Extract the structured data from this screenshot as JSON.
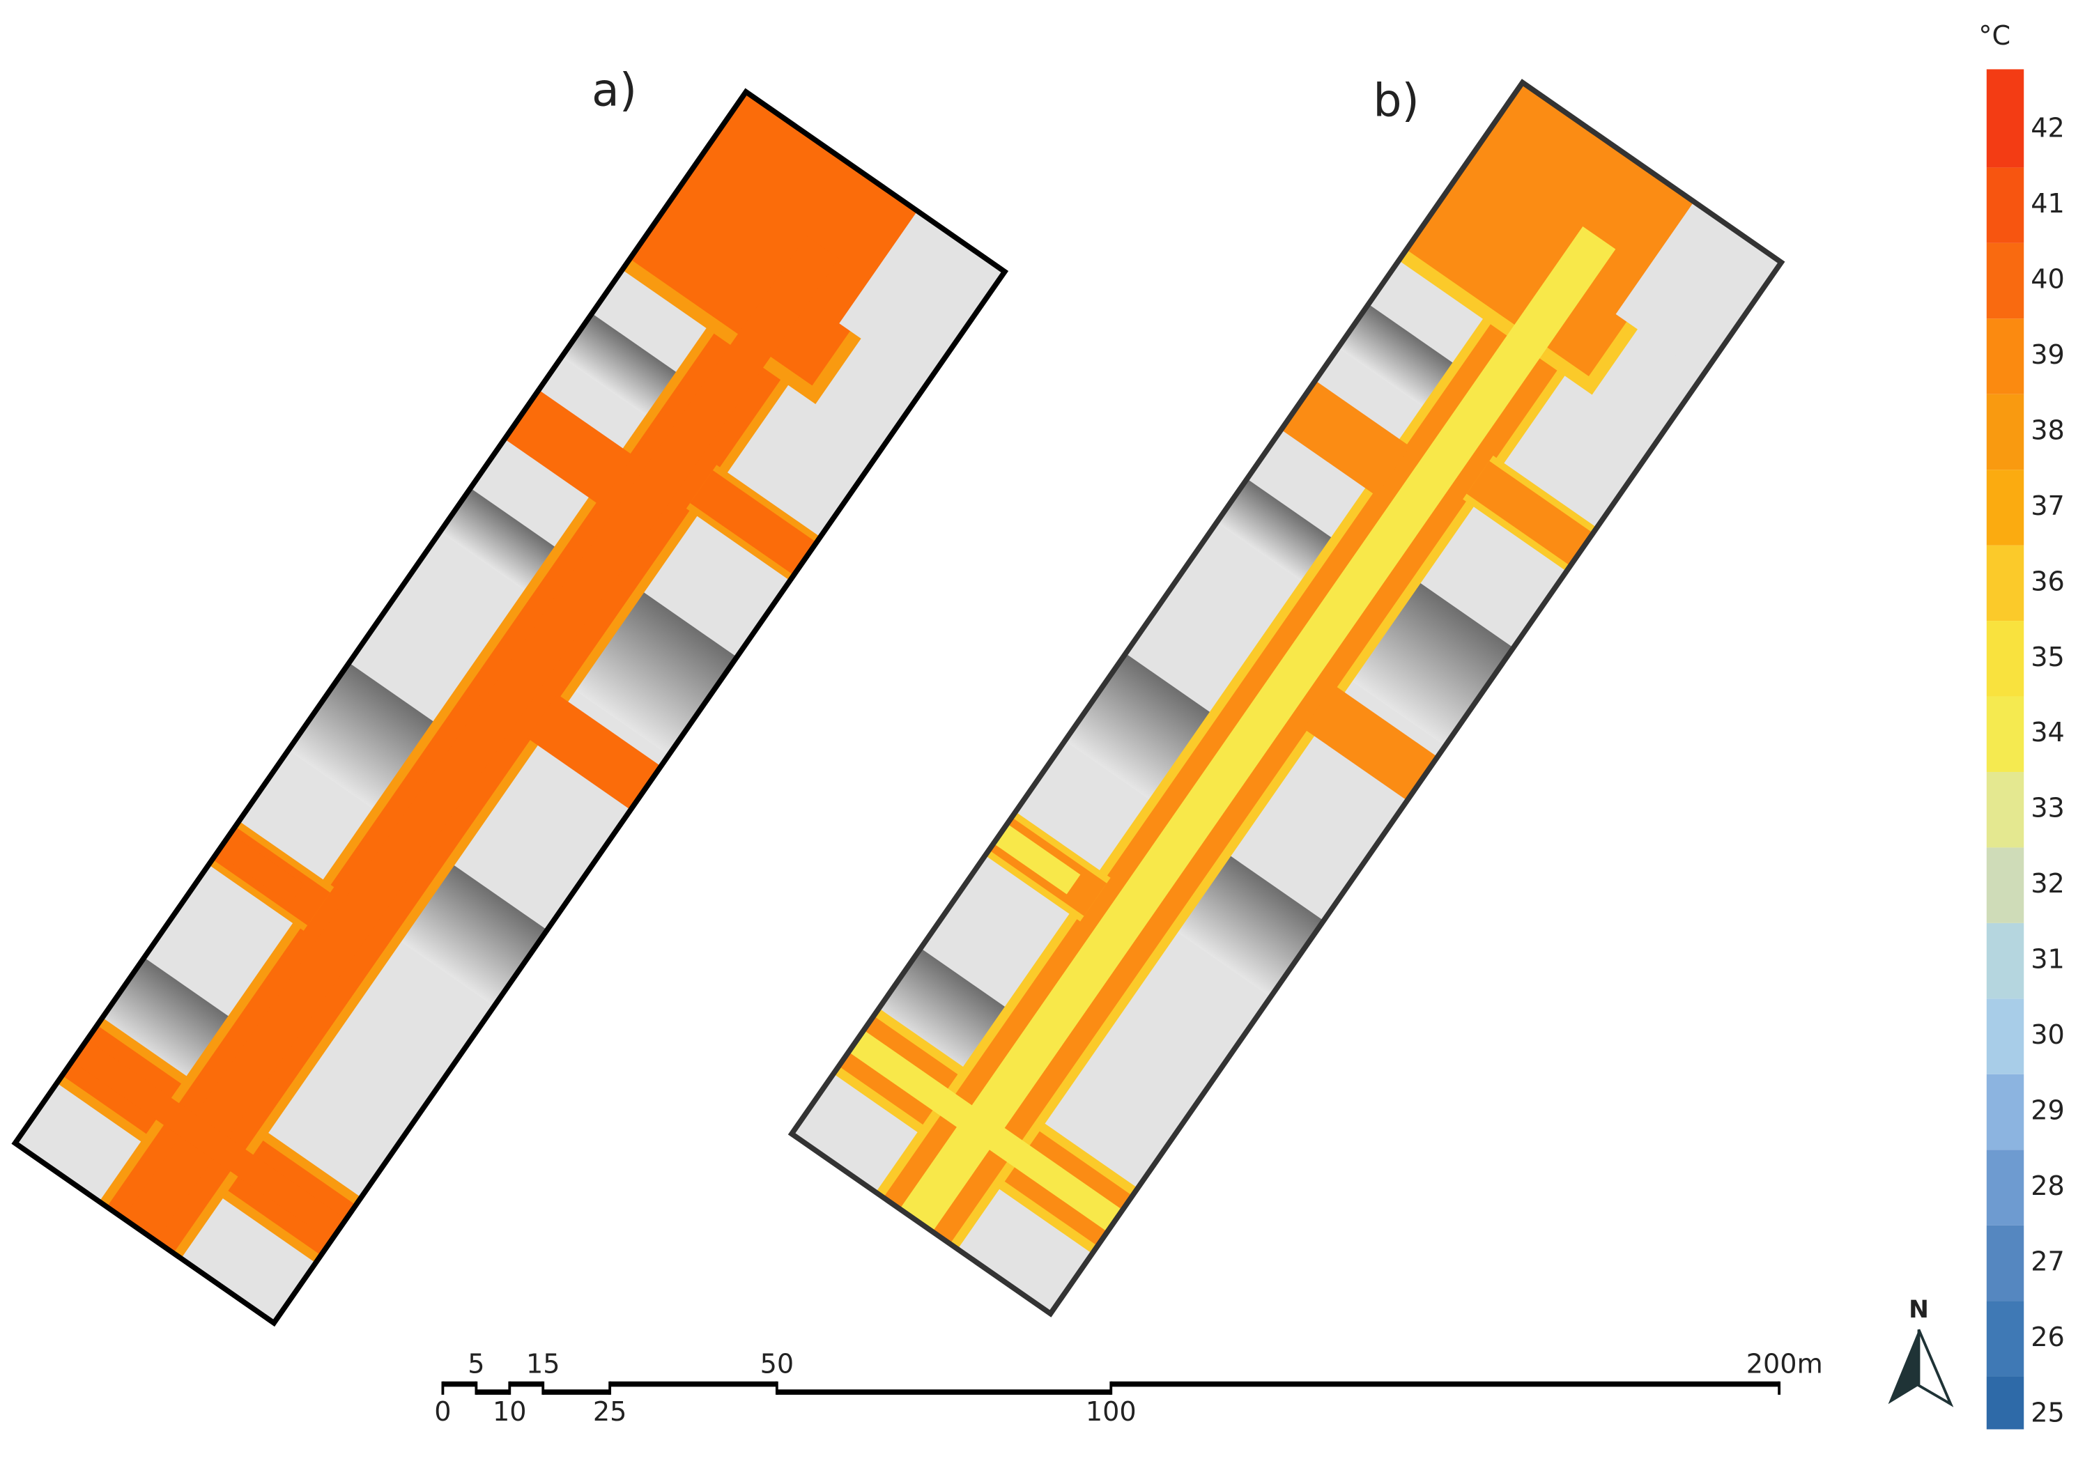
{
  "panels": [
    {
      "label": "a)"
    },
    {
      "label": "b)"
    }
  ],
  "colorbar": {
    "unit": "°C",
    "lim": [
      24.8,
      42.8
    ],
    "ticks": [
      25,
      26,
      27,
      28,
      29,
      30,
      31,
      32,
      33,
      34,
      35,
      36,
      37,
      38,
      39,
      40,
      41,
      42
    ],
    "colors": [
      "#2e6aa8",
      "#3f79b5",
      "#5587c0",
      "#6e9bd0",
      "#8cb4e0",
      "#a8cde8",
      "#b5d6df",
      "#cfdcb8",
      "#e4e890",
      "#f5ea50",
      "#f9e23e",
      "#fbca2a",
      "#fbab10",
      "#f99a10",
      "#fb8a10",
      "#f96a10",
      "#f75510",
      "#f33c14"
    ]
  },
  "scale_bar": {
    "ticks": [
      0,
      5,
      10,
      15,
      25,
      50,
      100,
      {
        "value": 200,
        "label": "200m"
      }
    ]
  },
  "north": "N"
}
